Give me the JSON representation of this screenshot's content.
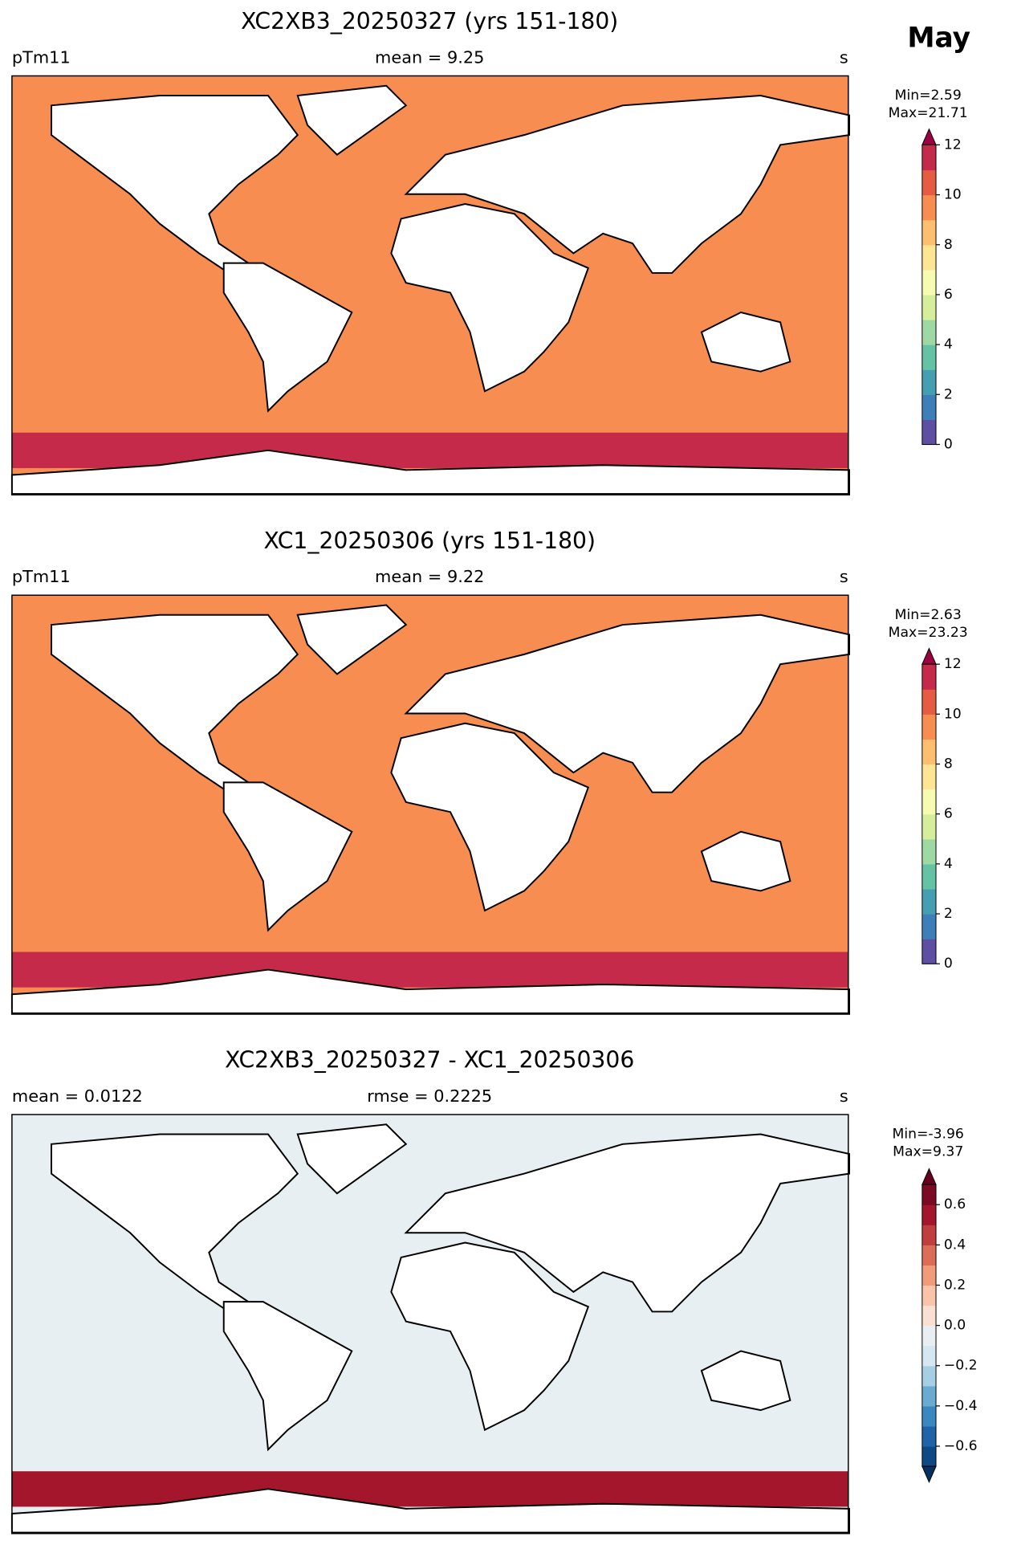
{
  "title": "May",
  "chart_data": [
    {
      "type": "map",
      "title": "XC2XB3_20250327 (yrs 151-180)",
      "left_label": "pTm11",
      "center_label": "mean = 9.25",
      "unit": "s",
      "stat_labels": [
        "Min=2.59",
        "Max=21.71"
      ],
      "levels": [
        0,
        1,
        2,
        3,
        4,
        5,
        6,
        7,
        8,
        9,
        10,
        11,
        12
      ],
      "colors": [
        "#5e4fa2",
        "#3f7fb9",
        "#469eb3",
        "#66c2a5",
        "#9ed9a4",
        "#d6ee9b",
        "#f6fbb2",
        "#fee593",
        "#fdbe6f",
        "#f88d52",
        "#e65c42",
        "#c52a4a"
      ],
      "extend_colors": [
        null,
        "#9e0142"
      ],
      "ticks": [
        0,
        2,
        4,
        6,
        8,
        10,
        12
      ]
    },
    {
      "type": "map",
      "title": "XC1_20250306 (yrs 151-180)",
      "left_label": "pTm11",
      "center_label": "mean = 9.22",
      "unit": "s",
      "stat_labels": [
        "Min=2.63",
        "Max=23.23"
      ],
      "levels": [
        0,
        1,
        2,
        3,
        4,
        5,
        6,
        7,
        8,
        9,
        10,
        11,
        12
      ],
      "colors": [
        "#5e4fa2",
        "#3f7fb9",
        "#469eb3",
        "#66c2a5",
        "#9ed9a4",
        "#d6ee9b",
        "#f6fbb2",
        "#fee593",
        "#fdbe6f",
        "#f88d52",
        "#e65c42",
        "#c52a4a"
      ],
      "extend_colors": [
        null,
        "#9e0142"
      ],
      "ticks": [
        0,
        2,
        4,
        6,
        8,
        10,
        12
      ]
    },
    {
      "type": "map",
      "title": "XC2XB3_20250327 - XC1_20250306",
      "left_label": "mean = 0.0122",
      "center_label": "rmse = 0.2225",
      "unit": "s",
      "stat_labels": [
        "Min=-3.96",
        "Max=9.37"
      ],
      "levels": [
        -0.7,
        -0.6,
        -0.5,
        -0.4,
        -0.3,
        -0.2,
        -0.1,
        0,
        0.1,
        0.2,
        0.3,
        0.4,
        0.5,
        0.6,
        0.7
      ],
      "colors": [
        "#0d4a85",
        "#1f63a8",
        "#3a88bf",
        "#6aabd1",
        "#a7cfe4",
        "#d5e7f1",
        "#e8eef2",
        "#fbe0d1",
        "#f9c4aa",
        "#f09b7a",
        "#dc6d59",
        "#c13e3e",
        "#a3162c",
        "#7c0a22"
      ],
      "extend_colors": [
        "#053061",
        "#67001f"
      ],
      "ticks": [
        {
          "value": -0.6,
          "label": "−0.6"
        },
        {
          "value": -0.4,
          "label": "−0.4"
        },
        {
          "value": -0.2,
          "label": "−0.2"
        },
        {
          "value": 0,
          "label": "0.0"
        },
        0.2,
        0.4,
        0.6
      ]
    }
  ]
}
